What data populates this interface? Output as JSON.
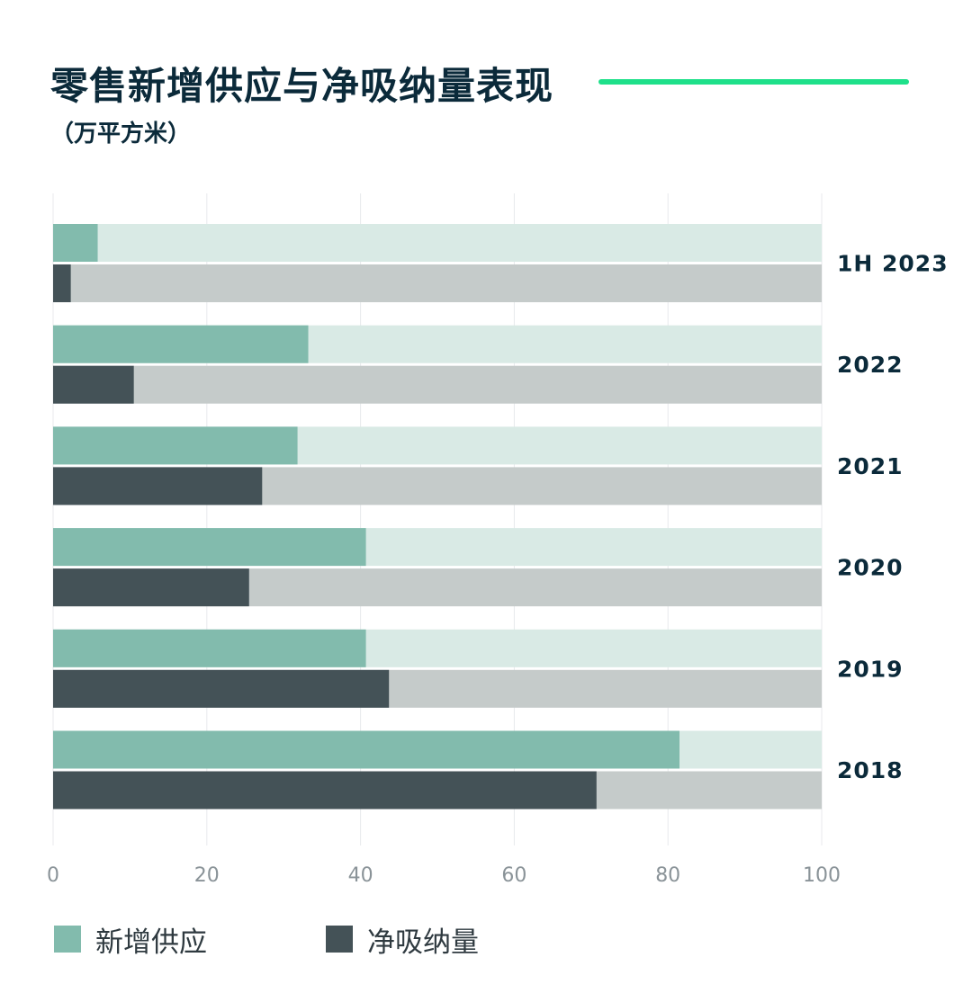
{
  "title": "零售新增供应与净吸纳量表现",
  "subtitle": "（万平方米）",
  "colors": {
    "accent_line": "#1ee08a",
    "supply": "#82bbad",
    "supply_track": "#d9eae5",
    "absorption": "#445257",
    "absorption_track": "#c5cbca",
    "text_dark": "#0b2a3a",
    "axis_text": "#8a9398",
    "grid": "#e8eaec"
  },
  "legend": [
    {
      "label": "新增供应",
      "color": "#82bbad"
    },
    {
      "label": "净吸纳量",
      "color": "#445257"
    }
  ],
  "chart_data": {
    "type": "bar",
    "orientation": "horizontal",
    "categories": [
      "1H 2023",
      "2022",
      "2021",
      "2020",
      "2019",
      "2018"
    ],
    "series": [
      {
        "name": "新增供应",
        "values": [
          5.8,
          33.2,
          31.8,
          40.7,
          40.7,
          81.5
        ]
      },
      {
        "name": "净吸纳量",
        "values": [
          2.3,
          10.5,
          27.2,
          25.5,
          43.7,
          70.7
        ]
      }
    ],
    "xlim": [
      0,
      100
    ],
    "xticks": [
      0,
      20,
      40,
      60,
      80,
      100
    ],
    "grid": true,
    "legend_position": "bottom-left",
    "category_labels_position": "right"
  }
}
